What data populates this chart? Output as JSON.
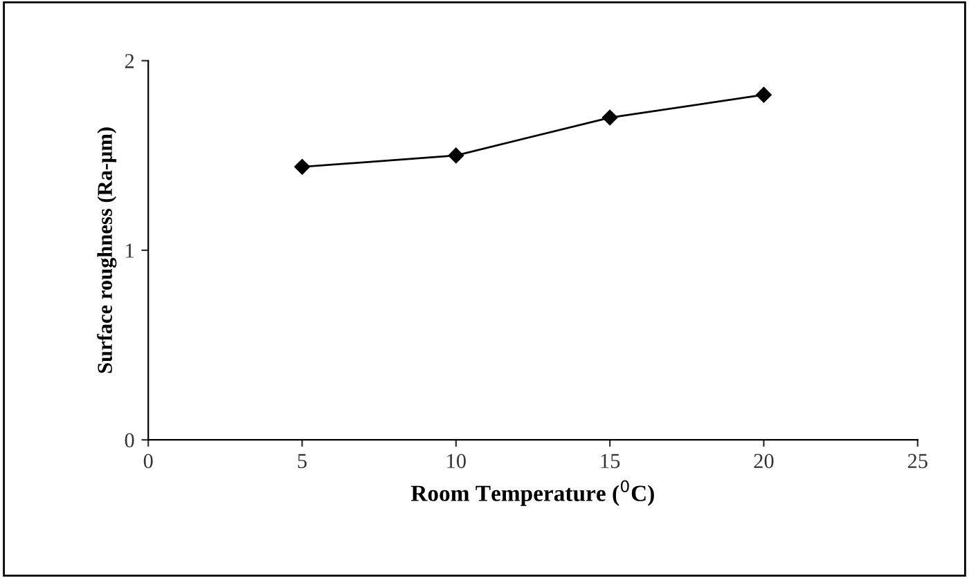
{
  "chart_data": {
    "type": "line",
    "xlabel": "Room Temperature ($^{0}$C)",
    "ylabel": "Surface roughness (Ra-μm)",
    "x": [
      5,
      10,
      15,
      20
    ],
    "series": [
      {
        "color": "#000000",
        "values": [
          1.44,
          1.5,
          1.7,
          1.82
        ]
      }
    ],
    "xlim": [
      0,
      25
    ],
    "xticks": [
      0,
      5,
      10,
      15,
      20,
      25
    ],
    "ylim": [
      0,
      2
    ],
    "yticks": [
      0,
      1,
      2
    ],
    "marker": "diamond",
    "line_style": "solid",
    "grid": false,
    "legend": false
  }
}
